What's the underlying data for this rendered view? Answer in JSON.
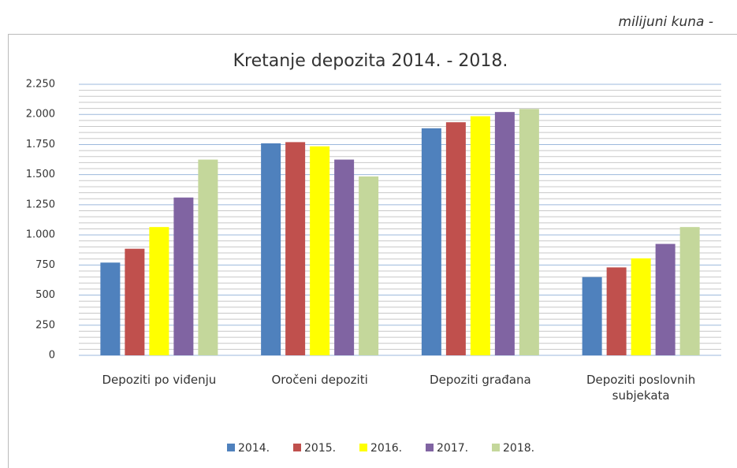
{
  "unit_note": "milijuni kuna -",
  "chart_data": {
    "type": "bar",
    "title": "Kretanje depozita 2014. - 2018.",
    "categories": [
      "Depoziti po viđenju",
      "Oročeni depoziti",
      "Depoziti građana",
      "Depoziti poslovnih subjekata"
    ],
    "series": [
      {
        "name": "2014.",
        "color": "#4f81bd",
        "values": [
          770,
          1760,
          1885,
          650
        ]
      },
      {
        "name": "2015.",
        "color": "#c0504d",
        "values": [
          885,
          1770,
          1935,
          730
        ]
      },
      {
        "name": "2016.",
        "color": "#ffff00",
        "values": [
          1065,
          1735,
          1985,
          805
        ]
      },
      {
        "name": "2017.",
        "color": "#8064a2",
        "values": [
          1310,
          1625,
          2020,
          925
        ]
      },
      {
        "name": "2018.",
        "color": "#c4d79b",
        "values": [
          1625,
          1485,
          2045,
          1065
        ]
      }
    ],
    "ylim": [
      0,
      2250
    ],
    "yticks": [
      0,
      250,
      500,
      750,
      {
        "value": 1000,
        "label": "1.000"
      },
      {
        "value": 1250,
        "label": "1.250"
      },
      {
        "value": 1500,
        "label": "1.500"
      },
      {
        "value": 1750,
        "label": "1.750"
      },
      {
        "value": 2000,
        "label": "2.000"
      },
      {
        "value": 2250,
        "label": "2.250"
      }
    ],
    "minor_yticks": [
      50,
      100,
      150,
      200,
      300,
      350,
      400,
      450,
      550,
      600,
      650,
      700,
      800,
      850,
      900,
      950,
      1050,
      1100,
      1150,
      1200,
      1300,
      1350,
      1400,
      1450,
      1550,
      1600,
      1650,
      1700,
      1800,
      1850,
      1900,
      1950,
      2050,
      2100,
      2150,
      2200
    ],
    "grid": true,
    "legend": "bottom"
  }
}
